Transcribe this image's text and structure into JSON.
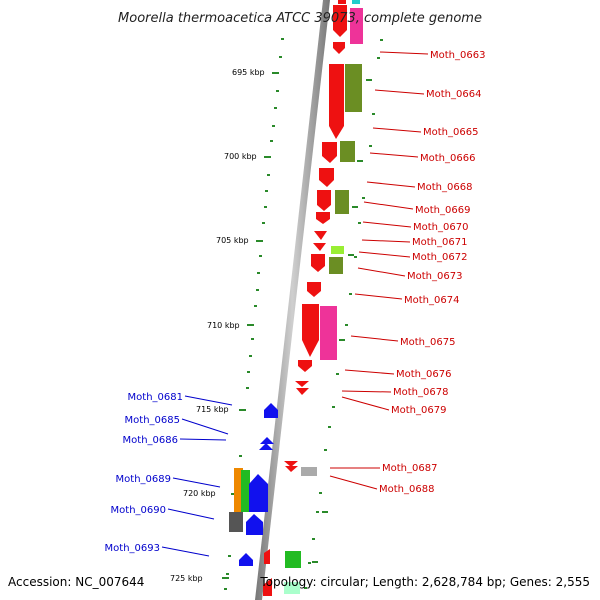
{
  "title": "Moorella thermoacetica ATCC 39073, complete genome",
  "footer": {
    "accession": "Accession: NC_007644",
    "topology": "Topology: circular; Length: 2,628,784 bp; Genes: 2,555"
  },
  "scale_labels": [
    "695 kbp",
    "700 kbp",
    "705 kbp",
    "710 kbp",
    "715 kbp",
    "720 kbp",
    "725 kbp"
  ],
  "gene_labels_forward": [
    "Moth_0663",
    "Moth_0664",
    "Moth_0665",
    "Moth_0666",
    "Moth_0668",
    "Moth_0669",
    "Moth_0670",
    "Moth_0671",
    "Moth_0672",
    "Moth_0673",
    "Moth_0674",
    "Moth_0675",
    "Moth_0676",
    "Moth_0678",
    "Moth_0679",
    "Moth_0687",
    "Moth_0688"
  ],
  "gene_labels_reverse": [
    "Moth_0681",
    "Moth_0685",
    "Moth_0686",
    "Moth_0689",
    "Moth_0690",
    "Moth_0693"
  ],
  "colors": {
    "forward_label": "#cc0000",
    "reverse_label": "#0000cc",
    "red_gene": "#ee1111",
    "olive_gene": "#6b8e23",
    "pink_gene": "#ee3399",
    "blue_gene": "#1111ee",
    "green_gene": "#22bb22",
    "orange_gene": "#ee8800",
    "gray_gene": "#555555",
    "light_green_gene": "#99ee33",
    "cyan_gene": "#22cccc",
    "tick_green": "#2a8a2a"
  }
}
